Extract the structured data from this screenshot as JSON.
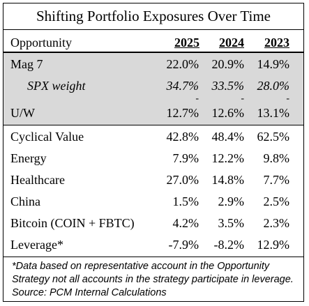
{
  "title": "Shifting Portfolio Exposures Over Time",
  "header": {
    "opportunity": "Opportunity",
    "years": [
      "2025",
      "2024",
      "2023"
    ]
  },
  "mag_block": {
    "mag7": {
      "label": "Mag 7",
      "values": [
        "22.0%",
        "20.9%",
        "14.9%"
      ]
    },
    "spx": {
      "label": "SPX weight",
      "values": [
        "34.7%",
        "33.5%",
        "28.0%"
      ]
    },
    "dashes": [
      "-",
      "-",
      "-"
    ],
    "uw": {
      "label": "U/W",
      "values": [
        "12.7%",
        "12.6%",
        "13.1%"
      ]
    }
  },
  "rows": [
    {
      "label": "Cyclical Value",
      "values": [
        "42.8%",
        "48.4%",
        "62.5%"
      ]
    },
    {
      "label": "Energy",
      "values": [
        "7.9%",
        "12.2%",
        "9.8%"
      ]
    },
    {
      "label": "Healthcare",
      "values": [
        "27.0%",
        "14.8%",
        "7.7%"
      ]
    },
    {
      "label": "China",
      "values": [
        "1.5%",
        "2.9%",
        "2.5%"
      ]
    },
    {
      "label": "Bitcoin (COIN + FBTC)",
      "values": [
        "4.2%",
        "3.5%",
        "2.3%"
      ]
    },
    {
      "label": "Leverage*",
      "values": [
        "-7.9%",
        "-8.2%",
        "12.9%"
      ]
    }
  ],
  "footnote": "*Data based on representative account in the Opportunity Strategy not all accounts in the strategy participate in leverage. Source: PCM Internal Calculations"
}
